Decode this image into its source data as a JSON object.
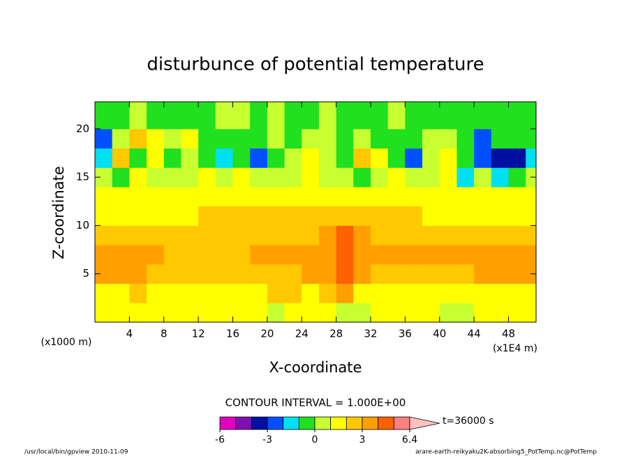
{
  "chart_data": {
    "type": "contour",
    "title": "disturbunce of potential temperature",
    "xlabel": "X-coordinate",
    "ylabel": "Z-coordinate",
    "xunit_labels": [
      "(x1000 m)",
      "(x1E4 m)"
    ],
    "xlim": [
      0,
      51.2
    ],
    "ylim": [
      0,
      22.8
    ],
    "xticks": [
      4,
      8,
      12,
      16,
      20,
      24,
      28,
      32,
      36,
      40,
      44,
      48
    ],
    "yticks": [
      5,
      10,
      15,
      20
    ],
    "x": [
      1,
      3,
      5,
      7,
      9,
      11,
      13,
      15,
      17,
      19,
      21,
      23,
      25,
      27,
      29,
      31,
      33,
      35,
      37,
      39,
      41,
      43,
      45,
      47,
      49,
      51
    ],
    "z": [
      1,
      3,
      5,
      7,
      9,
      11,
      13,
      15,
      17,
      19,
      21
    ],
    "values": [
      [
        1.5,
        1.5,
        1.5,
        1.5,
        1.5,
        1.5,
        1.5,
        1.5,
        1.5,
        1.5,
        0.5,
        1.5,
        1.5,
        1.5,
        0.5,
        0.5,
        1.5,
        1.5,
        1.5,
        1.5,
        0.5,
        0.5,
        1.5,
        1.5,
        1.5,
        1.5
      ],
      [
        1.5,
        1.5,
        2.5,
        1.5,
        1.5,
        1.5,
        1.5,
        1.5,
        1.5,
        1.5,
        2.5,
        2.5,
        1.5,
        2.5,
        3.5,
        1.5,
        1.5,
        1.5,
        1.5,
        1.5,
        1.5,
        1.5,
        1.5,
        1.5,
        1.5,
        1.5
      ],
      [
        3.5,
        3.5,
        3.5,
        2.5,
        2.5,
        2.5,
        2.5,
        2.5,
        2.5,
        2.5,
        2.5,
        2.5,
        3.5,
        3.5,
        4.5,
        3.5,
        2.5,
        2.5,
        2.5,
        2.5,
        2.5,
        2.5,
        3.5,
        3.5,
        3.5,
        3.5
      ],
      [
        3.5,
        3.5,
        3.5,
        3.5,
        2.5,
        2.5,
        2.5,
        2.5,
        2.5,
        3.5,
        3.5,
        3.5,
        3.5,
        3.5,
        4.5,
        3.5,
        3.5,
        3.5,
        3.5,
        3.5,
        3.5,
        3.5,
        3.5,
        3.5,
        3.5,
        3.5
      ],
      [
        2.5,
        2.5,
        2.5,
        2.5,
        2.5,
        2.5,
        2.5,
        2.5,
        2.5,
        2.5,
        2.5,
        2.5,
        2.5,
        3.5,
        4.5,
        3.5,
        2.5,
        2.5,
        2.5,
        2.5,
        2.5,
        2.5,
        2.5,
        2.5,
        2.5,
        2.5
      ],
      [
        1.5,
        1.5,
        1.5,
        1.5,
        1.5,
        1.5,
        2.5,
        2.5,
        2.5,
        2.5,
        2.5,
        2.5,
        2.5,
        2.5,
        2.5,
        2.5,
        2.5,
        2.5,
        2.5,
        1.5,
        1.5,
        1.5,
        1.5,
        1.5,
        1.5,
        1.5
      ],
      [
        1.5,
        1.5,
        1.5,
        1.5,
        1.5,
        1.5,
        1.5,
        1.5,
        1.5,
        1.5,
        1.5,
        1.5,
        1.5,
        1.5,
        1.5,
        1.5,
        1.5,
        1.5,
        1.5,
        1.5,
        1.5,
        1.5,
        1.5,
        1.5,
        1.5,
        1.5
      ],
      [
        0.5,
        -0.5,
        1.5,
        0.5,
        0.5,
        0.5,
        1.5,
        0.5,
        1.5,
        0.5,
        0.5,
        0.5,
        1.5,
        0.5,
        0.5,
        -0.5,
        0.5,
        1.5,
        0.5,
        0.5,
        1.5,
        -1.5,
        0.5,
        -1.5,
        -0.5,
        0.5
      ],
      [
        -1.5,
        2.5,
        -0.5,
        1.5,
        -0.5,
        0.5,
        -0.5,
        -1.5,
        -0.5,
        -2.5,
        -0.5,
        0.5,
        1.5,
        0.5,
        -0.5,
        2.5,
        1.5,
        -0.5,
        -2.5,
        0.5,
        1.5,
        -0.5,
        -2.5,
        -3.5,
        -3.5,
        -1.5
      ],
      [
        -2.5,
        0.5,
        2.5,
        1.5,
        0.5,
        1.5,
        -0.5,
        -0.5,
        -0.5,
        -0.5,
        0.5,
        -0.5,
        0.5,
        0.5,
        -0.5,
        0.5,
        -0.5,
        -0.5,
        -0.5,
        0.5,
        0.5,
        -0.5,
        -2.5,
        -0.5,
        -0.5,
        -0.5
      ],
      [
        -0.5,
        -0.5,
        0.5,
        -0.5,
        -0.5,
        -0.5,
        -0.5,
        0.5,
        0.5,
        -0.5,
        0.5,
        -0.5,
        -0.5,
        0.5,
        -0.5,
        -0.5,
        -0.5,
        0.5,
        -0.5,
        -0.5,
        -0.5,
        -0.5,
        -0.5,
        -0.5,
        -0.5,
        -0.5
      ]
    ],
    "levels": [
      -6,
      -5,
      -4,
      -3,
      -2,
      -1,
      0,
      1,
      2,
      3,
      4,
      5,
      6
    ],
    "colors": [
      "#e000c0",
      "#8010b0",
      "#0010a0",
      "#0050ff",
      "#00e0f0",
      "#20e020",
      "#c8ff30",
      "#ffff00",
      "#ffc800",
      "#ffa000",
      "#ff6000",
      "#ff8080"
    ],
    "over_color": "#ffc0c0",
    "colorbar_ticks": [
      -6,
      -3,
      0,
      3,
      6.4
    ],
    "contour_interval_label": "CONTOUR INTERVAL = 1.000E+00",
    "time_label": "t=36000 s",
    "footer_left": "/usr/local/bin/gpview  2010-11-09",
    "footer_right": "arare-earth-reikyaku2K-absorbing5_PotTemp.nc@PotTemp"
  }
}
